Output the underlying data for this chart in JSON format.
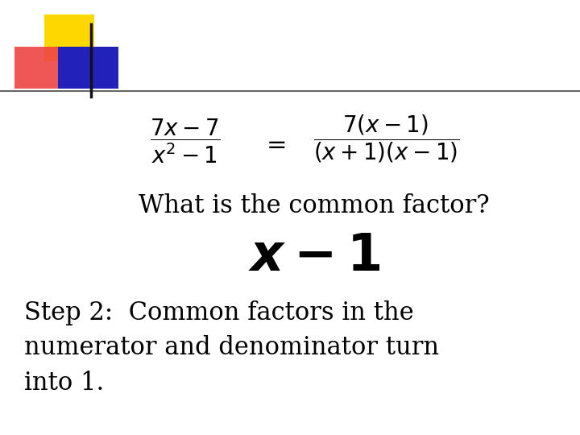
{
  "bg_color": "#ffffff",
  "logo_yellow": "#FFD700",
  "logo_red": "#EE4444",
  "logo_blue": "#2222BB",
  "line_color": "#555555",
  "text_color": "#000000",
  "question_text": "What is the common factor?",
  "step_line1": "Step 2:  Common factors in the",
  "step_line2": "numerator and denominator turn",
  "step_line3": "into 1."
}
